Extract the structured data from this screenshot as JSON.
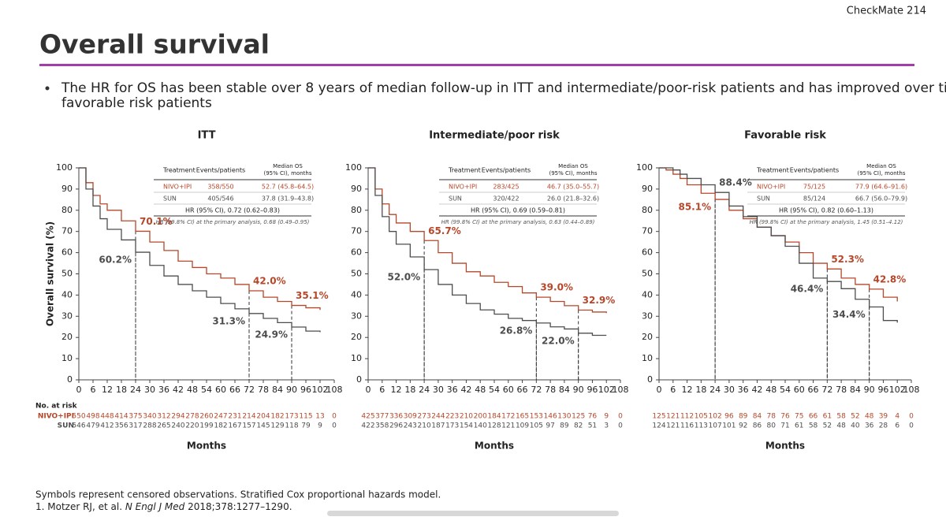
{
  "header": "CheckMate 214",
  "title": "Overall survival",
  "bullet": [
    "The HR for OS has been stable over 8 years of median follow-up in ITT and intermediate/poor-risk patients and has improved over time in",
    "favorable risk patients"
  ],
  "footnotes": {
    "line1": "Symbols represent censored observations. Stratified Cox proportional hazards model.",
    "ref_prefix": "1. Motzer RJ, et al. ",
    "ref_journal": "N Engl J Med",
    "ref_suffix": " 2018;378:1277–1290."
  },
  "chart_data": [
    {
      "type": "line",
      "title": "ITT",
      "y_label": "Overall survival (%)",
      "x_label": "Months",
      "xlim": [
        0,
        108
      ],
      "ylim": [
        0,
        100
      ],
      "xticks": [
        0,
        6,
        12,
        18,
        24,
        30,
        36,
        42,
        48,
        54,
        60,
        66,
        72,
        78,
        84,
        90,
        96,
        102,
        108
      ],
      "yticks": [
        0,
        10,
        20,
        30,
        40,
        50,
        60,
        70,
        80,
        90,
        100
      ],
      "x": [
        0,
        3,
        6,
        9,
        12,
        18,
        24,
        30,
        36,
        42,
        48,
        54,
        60,
        66,
        72,
        78,
        84,
        90,
        96,
        102
      ],
      "series": [
        {
          "name": "NIVO+IPI",
          "color": "#b5472a",
          "values": [
            100,
            93,
            87,
            83,
            80,
            75,
            70.1,
            65,
            61,
            56,
            53,
            50,
            48,
            45,
            42,
            39,
            37,
            35.1,
            34,
            33
          ]
        },
        {
          "name": "SUN",
          "color": "#4d4d4d",
          "values": [
            100,
            90,
            82,
            76,
            71,
            66,
            60.2,
            54,
            49,
            45,
            42,
            39,
            36,
            33.5,
            31.3,
            29,
            27,
            24.9,
            23,
            22.5
          ]
        }
      ],
      "annotations": [
        {
          "series": 0,
          "x": 24,
          "value": 70.1,
          "label": "70.1%"
        },
        {
          "series": 0,
          "x": 72,
          "value": 42.0,
          "label": "42.0%"
        },
        {
          "series": 0,
          "x": 90,
          "value": 35.1,
          "label": "35.1%"
        },
        {
          "series": 1,
          "x": 24,
          "value": 60.2,
          "label": "60.2%"
        },
        {
          "series": 1,
          "x": 72,
          "value": 31.3,
          "label": "31.3%"
        },
        {
          "series": 1,
          "x": 90,
          "value": 24.9,
          "label": "24.9%"
        }
      ],
      "table": {
        "header": [
          "Treatment",
          "Events/patients",
          [
            "Median OS",
            "(95% CI), months"
          ]
        ],
        "rows": [
          [
            "NIVO+IPI",
            "358/550",
            "52.7 (45.8–64.5)"
          ],
          [
            "SUN",
            "405/546",
            "37.8 (31.9–43.8)"
          ]
        ],
        "hr": "HR (95% CI), 0.72 (0.62–0.83)",
        "primary": "HR (99.8% CI) at the primary analysis, 0.68 (0.49–0.95)"
      },
      "risk_title": "No. at risk",
      "at_risk": [
        [
          550,
          498,
          448,
          414,
          375,
          340,
          312,
          294,
          278,
          260,
          247,
          231,
          214,
          204,
          182,
          173,
          115,
          13,
          0
        ],
        [
          546,
          479,
          412,
          356,
          317,
          288,
          265,
          240,
          220,
          199,
          182,
          167,
          157,
          145,
          129,
          118,
          79,
          9,
          0
        ]
      ]
    },
    {
      "type": "line",
      "title": "Intermediate/poor risk",
      "x_label": "Months",
      "xlim": [
        0,
        108
      ],
      "ylim": [
        0,
        100
      ],
      "xticks": [
        0,
        6,
        12,
        18,
        24,
        30,
        36,
        42,
        48,
        54,
        60,
        66,
        72,
        78,
        84,
        90,
        96,
        102,
        108
      ],
      "yticks": [
        0,
        10,
        20,
        30,
        40,
        50,
        60,
        70,
        80,
        90,
        100
      ],
      "x": [
        0,
        3,
        6,
        9,
        12,
        18,
        24,
        30,
        36,
        42,
        48,
        54,
        60,
        66,
        72,
        78,
        84,
        90,
        96,
        102
      ],
      "series": [
        {
          "name": "NIVO+IPI",
          "color": "#b5472a",
          "values": [
            100,
            90,
            83,
            78,
            74,
            70,
            65.7,
            60,
            55,
            51,
            49,
            46,
            44,
            41,
            39,
            37,
            35,
            32.9,
            32,
            31.5
          ]
        },
        {
          "name": "SUN",
          "color": "#4d4d4d",
          "values": [
            100,
            87,
            77,
            70,
            64,
            58,
            52.0,
            45,
            40,
            36,
            33,
            31,
            29,
            28,
            26.8,
            25,
            24,
            22.0,
            21,
            21
          ]
        }
      ],
      "annotations": [
        {
          "series": 0,
          "x": 24,
          "value": 65.7,
          "label": "65.7%"
        },
        {
          "series": 0,
          "x": 72,
          "value": 39.0,
          "label": "39.0%"
        },
        {
          "series": 0,
          "x": 90,
          "value": 32.9,
          "label": "32.9%"
        },
        {
          "series": 1,
          "x": 24,
          "value": 52.0,
          "label": "52.0%"
        },
        {
          "series": 1,
          "x": 72,
          "value": 26.8,
          "label": "26.8%"
        },
        {
          "series": 1,
          "x": 90,
          "value": 22.0,
          "label": "22.0%"
        }
      ],
      "table": {
        "header": [
          "Treatment",
          "Events/patients",
          [
            "Median OS",
            "(95% CI), months"
          ]
        ],
        "rows": [
          [
            "NIVO+IPI",
            "283/425",
            "46.7 (35.0–55.7)"
          ],
          [
            "SUN",
            "320/422",
            "26.0 (21.8–32.6)"
          ]
        ],
        "hr": "HR (95% CI), 0.69 (0.59–0.81)",
        "primary": "HR (99.8% CI) at the primary analysis, 0.63 (0.44–0.89)"
      },
      "at_risk": [
        [
          425,
          377,
          336,
          309,
          273,
          244,
          223,
          210,
          200,
          184,
          172,
          165,
          153,
          146,
          130,
          125,
          76,
          9,
          0
        ],
        [
          422,
          358,
          296,
          243,
          210,
          187,
          173,
          154,
          140,
          128,
          121,
          109,
          105,
          97,
          89,
          82,
          51,
          3,
          0
        ]
      ]
    },
    {
      "type": "line",
      "title": "Favorable risk",
      "x_label": "Months",
      "xlim": [
        0,
        108
      ],
      "ylim": [
        0,
        100
      ],
      "xticks": [
        0,
        6,
        12,
        18,
        24,
        30,
        36,
        42,
        48,
        54,
        60,
        66,
        72,
        78,
        84,
        90,
        96,
        102,
        108
      ],
      "yticks": [
        0,
        10,
        20,
        30,
        40,
        50,
        60,
        70,
        80,
        90,
        100
      ],
      "x": [
        0,
        3,
        6,
        9,
        12,
        18,
        24,
        30,
        36,
        42,
        48,
        54,
        60,
        66,
        72,
        78,
        84,
        90,
        96,
        102
      ],
      "series": [
        {
          "name": "NIVO+IPI",
          "color": "#b5472a",
          "values": [
            100,
            99,
            97,
            95,
            92,
            88,
            85.1,
            80,
            76,
            72,
            68,
            65,
            60,
            55,
            52.3,
            48,
            45,
            42.8,
            39,
            37
          ]
        },
        {
          "name": "SUN",
          "color": "#4d4d4d",
          "values": [
            100,
            100,
            99,
            97,
            95,
            92,
            88.4,
            82,
            77,
            72,
            68,
            63,
            55,
            48,
            46.4,
            43,
            38,
            34.4,
            28,
            27
          ]
        }
      ],
      "annotations": [
        {
          "series": 0,
          "x": 24,
          "value": 85.1,
          "label": "85.1%"
        },
        {
          "series": 0,
          "x": 72,
          "value": 52.3,
          "label": "52.3%"
        },
        {
          "series": 0,
          "x": 90,
          "value": 42.8,
          "label": "42.8%"
        },
        {
          "series": 1,
          "x": 24,
          "value": 88.4,
          "label": "88.4%"
        },
        {
          "series": 1,
          "x": 72,
          "value": 46.4,
          "label": "46.4%"
        },
        {
          "series": 1,
          "x": 90,
          "value": 34.4,
          "label": "34.4%"
        }
      ],
      "table": {
        "header": [
          "Treatment",
          "Events/patients",
          [
            "Median OS",
            "(95% CI), months"
          ]
        ],
        "rows": [
          [
            "NIVO+IPI",
            "75/125",
            "77.9 (64.6–91.6)"
          ],
          [
            "SUN",
            "85/124",
            "66.7 (56.0–79.9)"
          ]
        ],
        "hr": "HR (95% CI), 0.82 (0.60–1.13)",
        "primary": "HR (99.8% CI) at the primary analysis, 1.45 (0.51–4.12)"
      },
      "at_risk": [
        [
          125,
          121,
          112,
          105,
          102,
          96,
          89,
          84,
          78,
          76,
          75,
          66,
          61,
          58,
          52,
          48,
          39,
          4,
          0
        ],
        [
          124,
          121,
          116,
          113,
          107,
          101,
          92,
          86,
          80,
          71,
          61,
          58,
          52,
          48,
          40,
          36,
          28,
          6,
          0
        ]
      ]
    }
  ]
}
